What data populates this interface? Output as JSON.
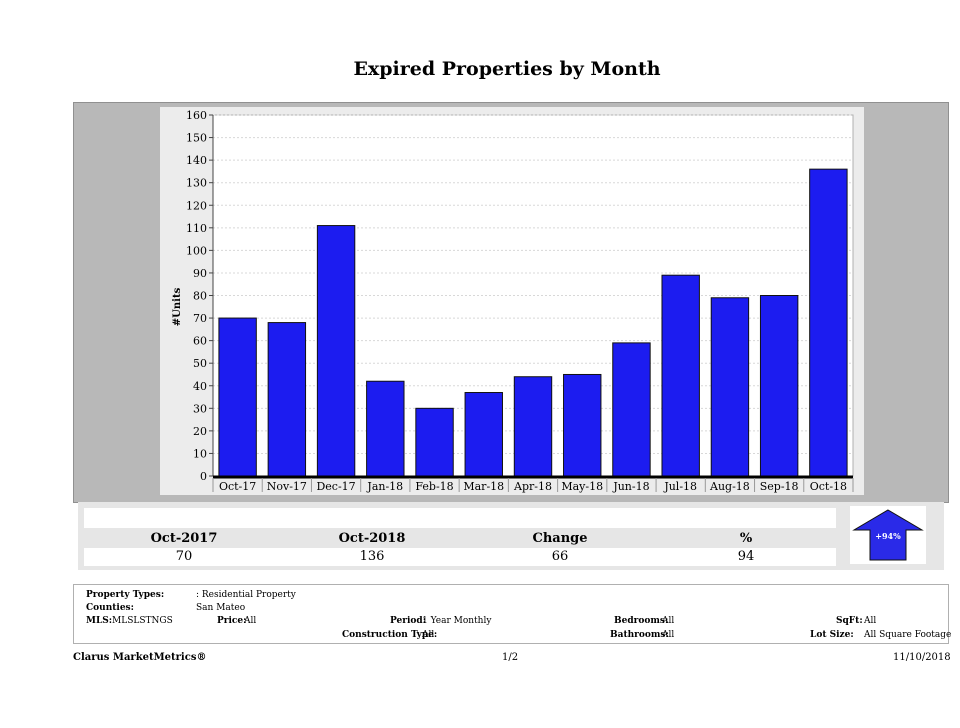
{
  "chart_data": {
    "type": "bar",
    "title": "Expired Properties by Month",
    "ylabel": "#Units",
    "xlabel": "",
    "ylim": [
      0,
      160
    ],
    "yticks": [
      0,
      10,
      20,
      30,
      40,
      50,
      60,
      70,
      80,
      90,
      100,
      110,
      120,
      130,
      140,
      150,
      160
    ],
    "categories": [
      "Oct-17",
      "Nov-17",
      "Dec-17",
      "Jan-18",
      "Feb-18",
      "Mar-18",
      "Apr-18",
      "May-18",
      "Jun-18",
      "Jul-18",
      "Aug-18",
      "Sep-18",
      "Oct-18"
    ],
    "values": [
      70,
      68,
      111,
      42,
      30,
      37,
      44,
      45,
      59,
      89,
      79,
      80,
      136
    ],
    "bar_color": "#1c1cf0",
    "grid": true,
    "legend": "none"
  },
  "summary": {
    "headers": [
      "Oct-2017",
      "Oct-2018",
      "Change",
      "%"
    ],
    "values": [
      "70",
      "136",
      "66",
      "94"
    ],
    "arrow_label": "+94%",
    "arrow_color": "#2a2ae8",
    "arrow_icon": "up-arrow-icon"
  },
  "info": {
    "property_types_label": "Property Types:",
    "property_types_value": ": Residential Property",
    "counties_label": "Counties:",
    "counties_value": "San Mateo",
    "mls_label": "MLS:",
    "mls_value": "MLSLSTNGS",
    "price_label": "Price:",
    "price_value": "All",
    "period_label": "Period:",
    "period_value": "1 Year Monthly",
    "construction_label": "Construction Type:",
    "construction_value": "All",
    "bedrooms_label": "Bedrooms:",
    "bedrooms_value": "All",
    "bathrooms_label": "Bathrooms:",
    "bathrooms_value": "All",
    "sqft_label": "SqFt:",
    "sqft_value": "All",
    "lotsize_label": "Lot Size:",
    "lotsize_value": "All Square Footage"
  },
  "footer": {
    "brand": "Clarus MarketMetrics®",
    "page": "1/2",
    "date": "11/10/2018"
  }
}
